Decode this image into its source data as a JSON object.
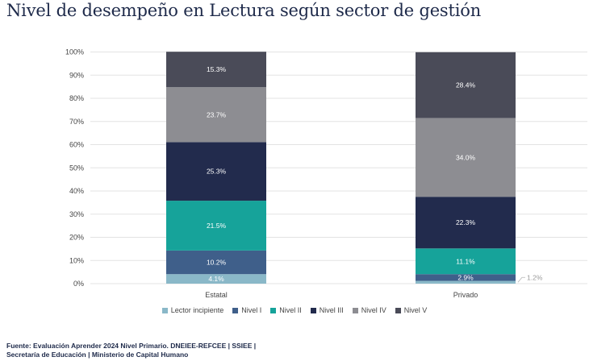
{
  "title": "Nivel de desempeño en Lectura según sector de gestión",
  "source_line1": "Fuente: Evaluación Aprender 2024 Nivel Primario. DNEIEE-REFCEE | SSIEE |",
  "source_line2": "Secretaría de Educación | Ministerio de Capital Humano",
  "chart_data": {
    "type": "bar",
    "stacked": true,
    "categories": [
      "Estatal",
      "Privado"
    ],
    "ylim": [
      0,
      100
    ],
    "yticks": [
      "0%",
      "10%",
      "20%",
      "30%",
      "40%",
      "50%",
      "60%",
      "70%",
      "80%",
      "90%",
      "100%"
    ],
    "grid": true,
    "legend_position": "bottom",
    "series": [
      {
        "name": "Lector incipiente",
        "color": "#8ab8c8",
        "values": [
          4.1,
          1.2
        ],
        "labels": [
          "4.1%",
          "1.2%"
        ]
      },
      {
        "name": "Nivel I",
        "color": "#3f5f8a",
        "values": [
          10.2,
          2.9
        ],
        "labels": [
          "10.2%",
          "2.9%"
        ]
      },
      {
        "name": "Nivel II",
        "color": "#16a39a",
        "values": [
          21.5,
          11.1
        ],
        "labels": [
          "21.5%",
          "11.1%"
        ]
      },
      {
        "name": "Nivel III",
        "color": "#222b4d",
        "values": [
          25.3,
          22.3
        ],
        "labels": [
          "25.3%",
          "22.3%"
        ]
      },
      {
        "name": "Nivel IV",
        "color": "#8d8d92",
        "values": [
          23.7,
          34.0
        ],
        "labels": [
          "23.7%",
          "34.0%"
        ]
      },
      {
        "name": "Nivel V",
        "color": "#4a4b58",
        "values": [
          15.3,
          28.4
        ],
        "labels": [
          "15.3%",
          "28.4%"
        ]
      }
    ]
  }
}
